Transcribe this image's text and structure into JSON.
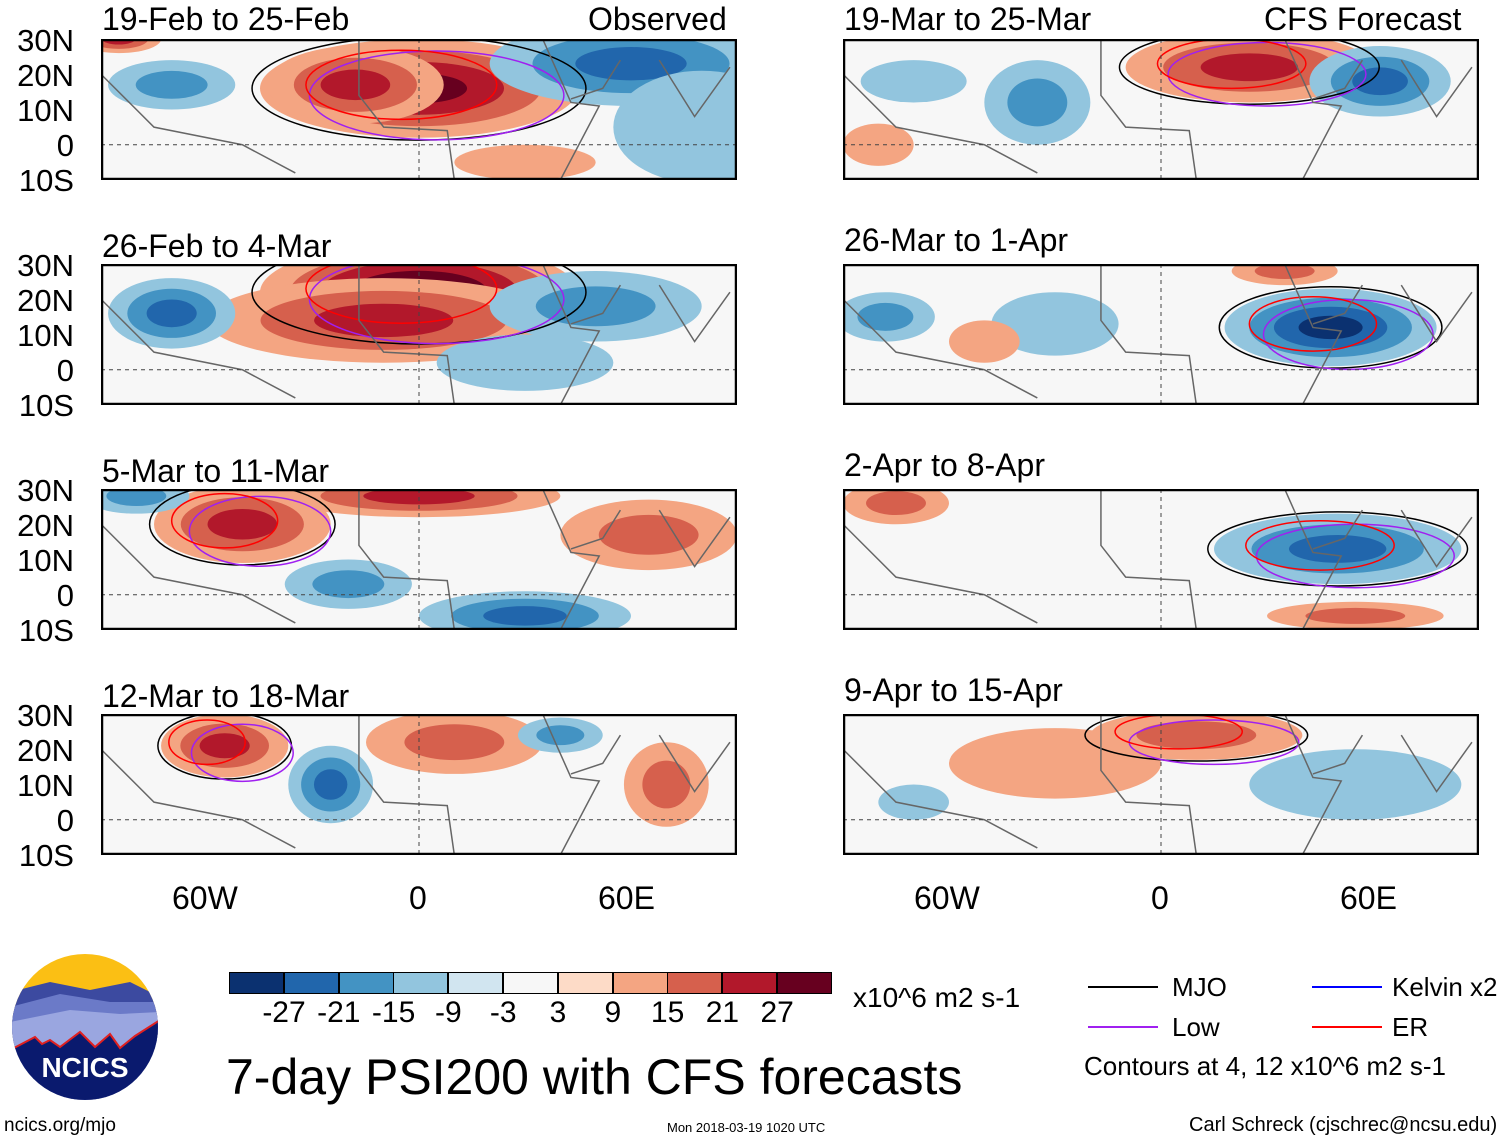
{
  "headers": {
    "left": "Observed",
    "right": "CFS Forecast"
  },
  "lat_labels": [
    "30N",
    "20N",
    "10N",
    "0",
    "10S"
  ],
  "lon_labels": [
    "60W",
    "0",
    "60E"
  ],
  "panels": [
    {
      "title": "19-Feb to 25-Feb",
      "anomalies": [
        {
          "lon": 0,
          "lat": 16,
          "v": 22,
          "rx": 45,
          "ry": 14
        },
        {
          "lon": -18,
          "lat": 17,
          "v": 16,
          "rx": 25,
          "ry": 11
        },
        {
          "lon": 60,
          "lat": 23,
          "v": -18,
          "rx": 40,
          "ry": 12
        },
        {
          "lon": -70,
          "lat": 17,
          "v": -12,
          "rx": 18,
          "ry": 7
        },
        {
          "lon": 80,
          "lat": 5,
          "v": -8,
          "rx": 25,
          "ry": 16
        },
        {
          "lon": -85,
          "lat": 30,
          "v": 15,
          "rx": 12,
          "ry": 4
        },
        {
          "lon": 30,
          "lat": -5,
          "v": 6,
          "rx": 20,
          "ry": 5
        }
      ]
    },
    {
      "title": "26-Feb to 4-Mar",
      "anomalies": [
        {
          "lon": 0,
          "lat": 22,
          "v": 32,
          "rx": 45,
          "ry": 14
        },
        {
          "lon": -10,
          "lat": 14,
          "v": 16,
          "rx": 50,
          "ry": 12
        },
        {
          "lon": -70,
          "lat": 16,
          "v": -16,
          "rx": 18,
          "ry": 10
        },
        {
          "lon": 50,
          "lat": 18,
          "v": -9,
          "rx": 30,
          "ry": 10
        },
        {
          "lon": 30,
          "lat": 2,
          "v": -6,
          "rx": 25,
          "ry": 8
        }
      ]
    },
    {
      "title": "5-Mar to 11-Mar",
      "anomalies": [
        {
          "lon": -50,
          "lat": 20,
          "v": 20,
          "rx": 25,
          "ry": 11
        },
        {
          "lon": 0,
          "lat": 28,
          "v": 15,
          "rx": 40,
          "ry": 6
        },
        {
          "lon": 65,
          "lat": 17,
          "v": 14,
          "rx": 25,
          "ry": 10
        },
        {
          "lon": -20,
          "lat": 3,
          "v": -12,
          "rx": 18,
          "ry": 7
        },
        {
          "lon": 30,
          "lat": -6,
          "v": -16,
          "rx": 30,
          "ry": 7
        },
        {
          "lon": -80,
          "lat": 28,
          "v": -9,
          "rx": 15,
          "ry": 5
        }
      ]
    },
    {
      "title": "12-Mar to 18-Mar",
      "anomalies": [
        {
          "lon": -55,
          "lat": 21,
          "v": 20,
          "rx": 18,
          "ry": 9
        },
        {
          "lon": 10,
          "lat": 22,
          "v": 13,
          "rx": 25,
          "ry": 9
        },
        {
          "lon": -25,
          "lat": 10,
          "v": -18,
          "rx": 12,
          "ry": 11
        },
        {
          "lon": 70,
          "lat": 10,
          "v": 9,
          "rx": 12,
          "ry": 12
        },
        {
          "lon": 40,
          "lat": 24,
          "v": -9,
          "rx": 12,
          "ry": 5
        }
      ]
    },
    {
      "title": "19-Mar to 25-Mar",
      "anomalies": [
        {
          "lon": 25,
          "lat": 22,
          "v": 20,
          "rx": 35,
          "ry": 10
        },
        {
          "lon": -35,
          "lat": 12,
          "v": -14,
          "rx": 15,
          "ry": 12
        },
        {
          "lon": 62,
          "lat": 18,
          "v": -20,
          "rx": 20,
          "ry": 10
        },
        {
          "lon": -80,
          "lat": 0,
          "v": 8,
          "rx": 10,
          "ry": 6
        },
        {
          "lon": -70,
          "lat": 18,
          "v": -6,
          "rx": 15,
          "ry": 6
        }
      ]
    },
    {
      "title": "26-Mar to 1-Apr",
      "anomalies": [
        {
          "lon": 48,
          "lat": 12,
          "v": -22,
          "rx": 30,
          "ry": 11
        },
        {
          "lon": -78,
          "lat": 15,
          "v": -10,
          "rx": 14,
          "ry": 7
        },
        {
          "lon": -30,
          "lat": 13,
          "v": -6,
          "rx": 18,
          "ry": 9
        },
        {
          "lon": -50,
          "lat": 8,
          "v": 6,
          "rx": 10,
          "ry": 6
        },
        {
          "lon": 35,
          "lat": 28,
          "v": 9,
          "rx": 15,
          "ry": 4
        }
      ]
    },
    {
      "title": "2-Apr to 8-Apr",
      "anomalies": [
        {
          "lon": 50,
          "lat": 13,
          "v": -20,
          "rx": 35,
          "ry": 10
        },
        {
          "lon": -75,
          "lat": 26,
          "v": 12,
          "rx": 15,
          "ry": 6
        },
        {
          "lon": 55,
          "lat": -6,
          "v": 9,
          "rx": 25,
          "ry": 4
        }
      ]
    },
    {
      "title": "9-Apr to 15-Apr",
      "anomalies": [
        {
          "lon": 10,
          "lat": 24,
          "v": 10,
          "rx": 30,
          "ry": 7
        },
        {
          "lon": -30,
          "lat": 16,
          "v": 5,
          "rx": 30,
          "ry": 10
        },
        {
          "lon": 55,
          "lat": 10,
          "v": -7,
          "rx": 30,
          "ry": 10
        },
        {
          "lon": -70,
          "lat": 5,
          "v": -4,
          "rx": 10,
          "ry": 5
        }
      ]
    }
  ],
  "colorbar": {
    "labels": [
      "-27",
      "-21",
      "-15",
      "-9",
      "-3",
      "3",
      "9",
      "15",
      "21",
      "27"
    ],
    "colors": [
      "#0b3170",
      "#2166ac",
      "#4393c3",
      "#92c5de",
      "#d1e5f0",
      "#f7f7f7",
      "#fddbc7",
      "#f4a582",
      "#d6604d",
      "#b2182b",
      "#67001f"
    ],
    "units": "x10^6 m2 s-1"
  },
  "title": "7-day PSI200 with CFS forecasts",
  "legend": {
    "items": [
      {
        "label": "MJO",
        "color": "#000000"
      },
      {
        "label": "Kelvin x2",
        "color": "#0000ff"
      },
      {
        "label": "Low",
        "color": "#a020f0"
      },
      {
        "label": "ER",
        "color": "#ff0000"
      }
    ],
    "note": "Contours at 4, 12 x10^6 m2 s-1"
  },
  "logo_text": "NCICS",
  "footer": {
    "url": "ncics.org/mjo",
    "timestamp": "Mon 2018-03-19 1020 UTC",
    "author": "Carl Schreck (cjschrec@ncsu.edu)"
  }
}
